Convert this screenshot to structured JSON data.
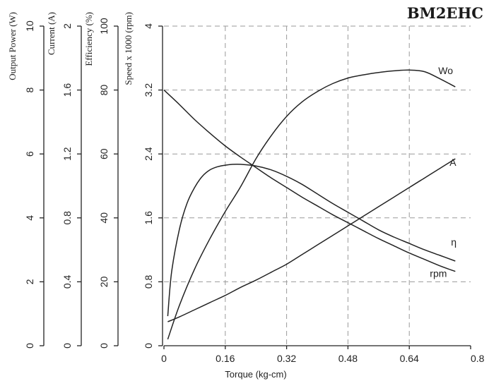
{
  "chart_data": {
    "type": "line",
    "title": "BM2EHC",
    "xlabel": "Torque (kg-cm)",
    "xlim": [
      0,
      0.8
    ],
    "x_ticks": [
      "0",
      "0.16",
      "0.32",
      "0.48",
      "0.64",
      "0.8"
    ],
    "grid": true,
    "y_axes": [
      {
        "id": "power",
        "label": "Output Power (W)",
        "ylim": [
          0,
          10
        ],
        "ticks": [
          "0",
          "2",
          "4",
          "6",
          "8",
          "10"
        ]
      },
      {
        "id": "current",
        "label": "Current (A)",
        "ylim": [
          0,
          2
        ],
        "ticks": [
          "0",
          "0.4",
          "0.8",
          "1.2",
          "1.6",
          "2"
        ]
      },
      {
        "id": "efficiency",
        "label": "Efficiency (%)",
        "ylim": [
          0,
          100
        ],
        "ticks": [
          "0",
          "20",
          "40",
          "60",
          "80",
          "100"
        ]
      },
      {
        "id": "speed",
        "label": "Speed x 1000 (rpm)",
        "ylim": [
          0,
          4
        ],
        "ticks": [
          "0",
          "0.8",
          "1.6",
          "2.4",
          "3.2",
          "4"
        ]
      }
    ],
    "series": [
      {
        "name": "Wo",
        "axis": "speed",
        "x": [
          0.01,
          0.04,
          0.08,
          0.12,
          0.16,
          0.2,
          0.24,
          0.28,
          0.32,
          0.36,
          0.4,
          0.44,
          0.48,
          0.52,
          0.56,
          0.6,
          0.64,
          0.68,
          0.72,
          0.76
        ],
        "y": [
          0.08,
          0.5,
          0.96,
          1.34,
          1.68,
          1.99,
          2.34,
          2.63,
          2.87,
          3.05,
          3.18,
          3.28,
          3.35,
          3.39,
          3.42,
          3.44,
          3.45,
          3.43,
          3.34,
          3.24
        ]
      },
      {
        "name": "A",
        "axis": "speed",
        "x": [
          0.01,
          0.04,
          0.08,
          0.12,
          0.16,
          0.2,
          0.24,
          0.28,
          0.32,
          0.36,
          0.4,
          0.44,
          0.48,
          0.52,
          0.56,
          0.6,
          0.64,
          0.68,
          0.72,
          0.76
        ],
        "y": [
          0.3,
          0.36,
          0.45,
          0.54,
          0.63,
          0.73,
          0.82,
          0.92,
          1.02,
          1.14,
          1.26,
          1.38,
          1.5,
          1.62,
          1.74,
          1.86,
          1.98,
          2.1,
          2.22,
          2.34
        ]
      },
      {
        "name": "η",
        "axis": "speed",
        "x": [
          0.01,
          0.02,
          0.04,
          0.06,
          0.08,
          0.1,
          0.12,
          0.14,
          0.16,
          0.18,
          0.2,
          0.24,
          0.28,
          0.32,
          0.36,
          0.4,
          0.44,
          0.48,
          0.52,
          0.56,
          0.6,
          0.64,
          0.68,
          0.72,
          0.76
        ],
        "y": [
          0.37,
          0.92,
          1.45,
          1.78,
          1.98,
          2.12,
          2.2,
          2.24,
          2.26,
          2.27,
          2.27,
          2.25,
          2.2,
          2.12,
          2.02,
          1.9,
          1.78,
          1.67,
          1.56,
          1.45,
          1.36,
          1.28,
          1.2,
          1.13,
          1.06
        ]
      },
      {
        "name": "rpm",
        "axis": "speed",
        "x": [
          0.0,
          0.04,
          0.08,
          0.12,
          0.16,
          0.2,
          0.24,
          0.28,
          0.32,
          0.36,
          0.4,
          0.44,
          0.48,
          0.52,
          0.56,
          0.6,
          0.64,
          0.68,
          0.72,
          0.76
        ],
        "y": [
          3.2,
          3.02,
          2.83,
          2.66,
          2.5,
          2.36,
          2.23,
          2.1,
          1.98,
          1.86,
          1.75,
          1.64,
          1.54,
          1.44,
          1.34,
          1.25,
          1.16,
          1.08,
          1.0,
          0.93
        ]
      }
    ]
  }
}
